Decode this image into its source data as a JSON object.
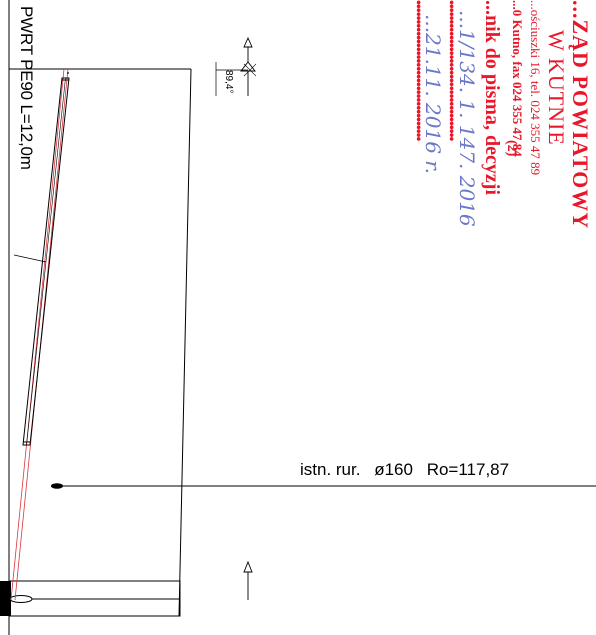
{
  "drawing": {
    "pipe_label": "PWRT PE90 L=12,0m",
    "angle_label": "89,4°",
    "existing_pipe_label": {
      "name": "istn. rur.",
      "diameter": "ø160",
      "ro": "Ro=117,87"
    }
  },
  "stamp": {
    "line1": "...ZĄD POWIATOWY",
    "line2": "W KUTNIE",
    "line3": "...ościuszki 16, tel. 024 355 47 89",
    "line4": "...0 Kutno,          fax 024 355 47 84",
    "line5": "...nik do pisma, decyzji",
    "number": "(2)",
    "handwriting_1": "...1/134. 1. 147. 2016",
    "handwriting_2": "...21.11. 2016 r.",
    "dots": "••••••••••••••••••••••••••••••••••••"
  },
  "colors": {
    "ink": "#000000",
    "stamp_red": "#e8172a",
    "red_line": "#d9363e",
    "handwriting_blue": "#6b78c9"
  }
}
